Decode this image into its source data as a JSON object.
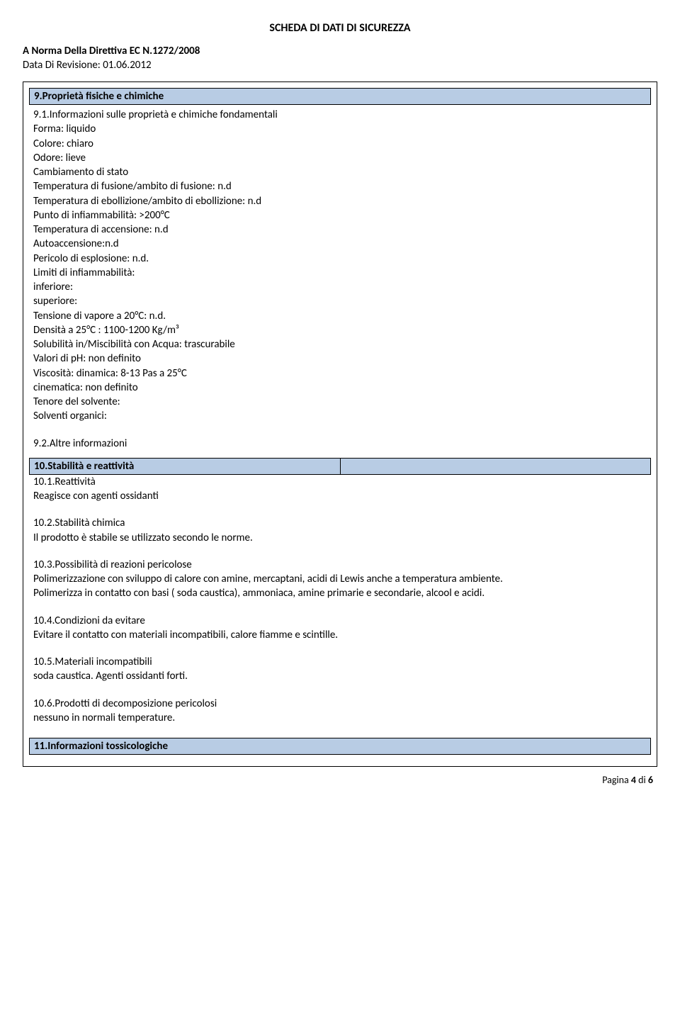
{
  "header": {
    "title": "SCHEDA DI DATI DI SICUREZZA",
    "directive": "A Norma Della Direttiva EC N.1272/2008",
    "revision": "Data Di Revisione: 01.06.2012"
  },
  "section9": {
    "heading": "9.Proprietà fisiche e chimiche",
    "sub1_title": "9.1.Informazioni sulle proprietà e chimiche fondamentali",
    "lines": {
      "forma": "Forma: liquido",
      "colore": "Colore: chiaro",
      "odore": "Odore: lieve",
      "cambiamento": "Cambiamento di stato",
      "tfusione": "Temperatura di fusione/ambito di fusione:  n.d",
      "tebollizione": "Temperatura di ebollizione/ambito di ebollizione:  n.d",
      "pinfiamm": "Punto di infiammabilità:  >200°C",
      "taccensione": "Temperatura di accensione:  n.d",
      "autoacc": "Autoaccensione:n.d",
      "pericolo": "Pericolo di esplosione: n.d.",
      "limiti": "Limiti di infiammabilità:",
      "inferiore": "inferiore:",
      "superiore": "superiore:",
      "tensione": "Tensione di vapore a 20°C:    n.d.",
      "densita": "Densità a 25°C : 1100-1200 Kg/m³",
      "solubilita": "Solubilità in/Miscibilità con Acqua: trascurabile",
      "ph": "Valori di pH: non definito",
      "viscosita": "Viscosità: dinamica:  8-13 Pas a 25°C",
      "cinematica": "cinematica: non definito",
      "tenore": "Tenore del solvente:",
      "solventi": "Solventi organici:"
    },
    "sub2_title": "9.2.Altre informazioni"
  },
  "section10": {
    "heading": "10.Stabilità e reattività",
    "s1_t": "10.1.Reattività",
    "s1_b": "Reagisce con agenti ossidanti",
    "s2_t": "10.2.Stabilità chimica",
    "s2_b": "Il prodotto è stabile se utilizzato secondo le norme.",
    "s3_t": "10.3.Possibilità di reazioni pericolose",
    "s3_b1": "Polimerizzazione con sviluppo di calore con amine, mercaptani, acidi di Lewis anche a temperatura ambiente.",
    "s3_b2": "Polimerizza in contatto  con basi ( soda caustica), ammoniaca, amine primarie e secondarie, alcool e acidi.",
    "s4_t": "10.4.Condizioni da evitare",
    "s4_b": "Evitare il contatto con materiali incompatibili, calore fiamme e scintille.",
    "s5_t": "10.5.Materiali incompatibili",
    "s5_b": "soda caustica. Agenti ossidanti forti.",
    "s6_t": "10.6.Prodotti di decomposizione pericolosi",
    "s6_b": "nessuno in normali temperature."
  },
  "section11": {
    "heading": "11.Informazioni tossicologiche"
  },
  "footer": {
    "page_label": "Pagina 4 di 6"
  }
}
